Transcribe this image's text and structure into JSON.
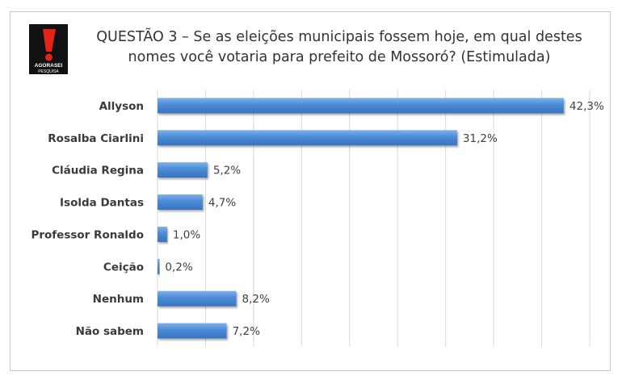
{
  "brand": {
    "logo_text_top": "AGORASEI",
    "logo_text_bottom": "PESQUISA",
    "colors": {
      "black": "#111111",
      "red": "#e2231a"
    }
  },
  "chart_data": {
    "type": "bar",
    "orientation": "horizontal",
    "title_lines": [
      "QUESTÃO 3 – Se as eleições municipais fossem hoje, em qual destes",
      "nomes você votaria para prefeito de Mossoró? (Estimulada)"
    ],
    "categories": [
      "Allyson",
      "Rosalba Ciarlini",
      "Cláudia Regina",
      "Isolda Dantas",
      "Professor Ronaldo",
      "Ceição",
      "Nenhum",
      "Não sabem"
    ],
    "values": [
      42.3,
      31.2,
      5.2,
      4.7,
      1.0,
      0.2,
      8.2,
      7.2
    ],
    "value_labels": [
      "42,3%",
      "31,2%",
      "5,2%",
      "4,7%",
      "1,0%",
      "0,2%",
      "8,2%",
      "7,2%"
    ],
    "xlim": [
      0,
      45
    ],
    "grid": true,
    "legend": "none",
    "bar_color": "#4a8bd6"
  }
}
